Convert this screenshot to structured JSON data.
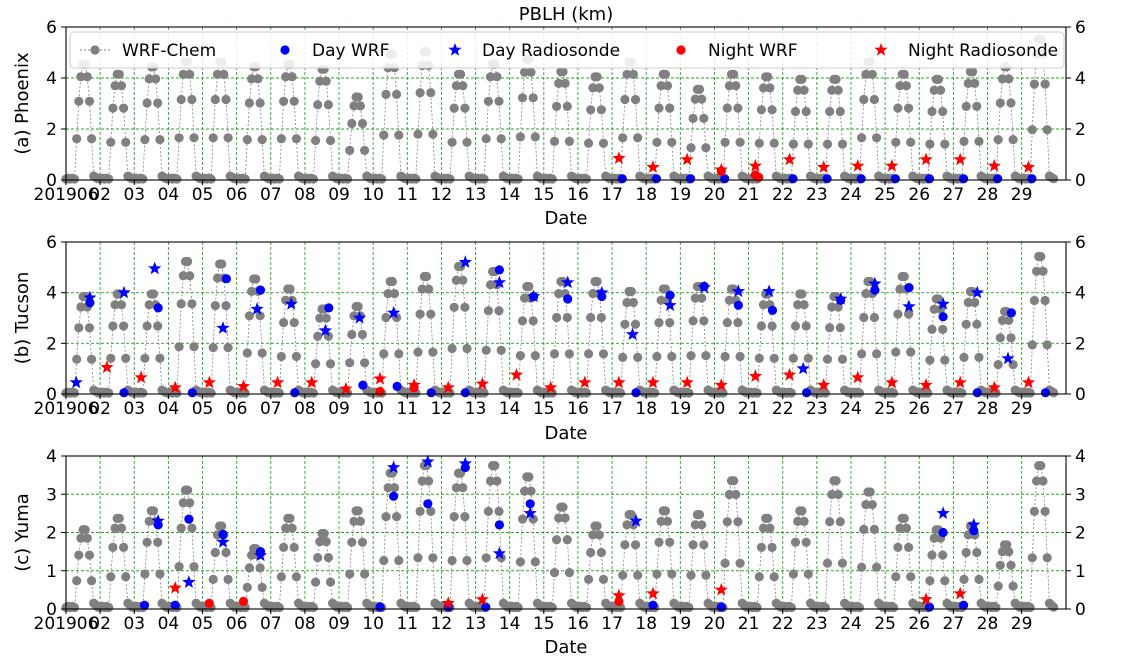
{
  "figure": {
    "title": "PBLH (km)",
    "legend_entries": [
      "WRF-Chem",
      "Day WRF",
      "Day Radiosonde",
      "Night WRF",
      "Night Radiosonde"
    ]
  },
  "colors": {
    "wrf_chem": "#808080",
    "day": "#0000ff",
    "night": "#ff0000",
    "grid": "#2ca02c"
  },
  "chart_data": [
    {
      "type": "scatter",
      "ylabel": "(a) Phoenix",
      "xlabel": "Date",
      "ylim": [
        0,
        6
      ],
      "yticks": [
        0,
        2,
        4,
        6
      ],
      "xticks": [
        "201906",
        "02",
        "03",
        "04",
        "05",
        "06",
        "07",
        "08",
        "09",
        "10",
        "11",
        "12",
        "13",
        "14",
        "15",
        "16",
        "17",
        "18",
        "19",
        "20",
        "21",
        "22",
        "23",
        "24",
        "25",
        "26",
        "27",
        "28",
        "29"
      ],
      "xlim_days": [
        1,
        30.3
      ],
      "grid": "dashed",
      "legend": "top",
      "wrf_daily_peak": [
        4.6,
        4.2,
        4.5,
        4.7,
        4.7,
        4.5,
        4.6,
        4.4,
        3.3,
        5.0,
        5.1,
        4.2,
        4.6,
        4.8,
        4.3,
        4.1,
        4.7,
        4.2,
        3.6,
        4.2,
        4.1,
        4.0,
        4.0,
        4.7,
        4.2,
        4.0,
        4.3,
        4.5,
        5.6
      ],
      "series": [
        {
          "name": "Day WRF",
          "x": [
            17.3,
            18.3,
            19.3,
            20.3,
            22.3,
            23.3,
            24.3,
            25.3,
            26.3,
            27.3,
            28.3,
            29.3
          ],
          "y": [
            0.05,
            0.05,
            0.05,
            0.05,
            0.05,
            0.05,
            0.05,
            0.05,
            0.05,
            0.05,
            0.05,
            0.05
          ]
        },
        {
          "name": "Day Radiosonde",
          "x": [],
          "y": []
        },
        {
          "name": "Night WRF",
          "x": [
            20.2,
            21.2,
            21.3
          ],
          "y": [
            0.35,
            0.2,
            0.1
          ]
        },
        {
          "name": "Night Radiosonde",
          "x": [
            17.2,
            18.2,
            19.2,
            20.2,
            21.2,
            22.2,
            23.2,
            24.2,
            25.2,
            26.2,
            27.2,
            28.2,
            29.2
          ],
          "y": [
            0.85,
            0.5,
            0.8,
            0.4,
            0.55,
            0.8,
            0.5,
            0.55,
            0.55,
            0.8,
            0.8,
            0.55,
            0.5
          ]
        }
      ]
    },
    {
      "type": "scatter",
      "ylabel": "(b) Tucson",
      "xlabel": "Date",
      "ylim": [
        0,
        6
      ],
      "yticks": [
        0,
        2,
        4,
        6
      ],
      "xticks": [
        "201906",
        "02",
        "03",
        "04",
        "05",
        "06",
        "07",
        "08",
        "09",
        "10",
        "11",
        "12",
        "13",
        "14",
        "15",
        "16",
        "17",
        "18",
        "19",
        "20",
        "21",
        "22",
        "23",
        "24",
        "25",
        "26",
        "27",
        "28",
        "29"
      ],
      "xlim_days": [
        1,
        30.3
      ],
      "grid": "dashed",
      "legend": "none",
      "wrf_daily_peak": [
        3.9,
        4.0,
        4.0,
        5.3,
        5.2,
        4.6,
        4.2,
        3.4,
        3.5,
        4.5,
        4.7,
        5.1,
        4.9,
        4.3,
        4.5,
        4.5,
        4.1,
        4.2,
        4.3,
        4.2,
        4.0,
        4.0,
        3.9,
        4.5,
        4.7,
        3.8,
        4.1,
        3.3,
        5.5
      ],
      "series": [
        {
          "name": "Day WRF",
          "x": [
            1.7,
            2.7,
            3.7,
            4.7,
            5.7,
            6.7,
            7.7,
            8.7,
            9.7,
            10.7,
            11.7,
            12.7,
            13.7,
            14.7,
            15.7,
            16.7,
            17.7,
            18.7,
            19.7,
            20.7,
            21.7,
            22.7,
            23.7,
            24.7,
            25.7,
            26.7,
            27.7,
            28.7,
            29.7
          ],
          "y": [
            3.6,
            0.05,
            3.4,
            0.05,
            4.55,
            4.1,
            0.05,
            3.4,
            0.35,
            0.3,
            0.05,
            0.05,
            4.9,
            3.85,
            3.75,
            3.85,
            0.05,
            3.9,
            4.25,
            3.5,
            3.3,
            0.05,
            3.7,
            4.1,
            4.2,
            3.05,
            0.05,
            3.2,
            0.05
          ]
        },
        {
          "name": "Day Radiosonde",
          "x": [
            1.3,
            1.7,
            2.7,
            3.6,
            5.6,
            6.6,
            7.6,
            8.6,
            9.6,
            10.6,
            12.7,
            13.7,
            14.7,
            15.7,
            16.7,
            17.6,
            18.7,
            19.7,
            20.7,
            21.6,
            22.6,
            23.7,
            24.7,
            25.7,
            26.7,
            27.7,
            28.6
          ],
          "y": [
            0.45,
            3.8,
            4.0,
            4.95,
            2.6,
            3.35,
            3.55,
            2.5,
            3.0,
            3.2,
            5.2,
            4.4,
            3.85,
            4.4,
            4.0,
            2.35,
            3.5,
            4.2,
            4.05,
            4.05,
            1.0,
            3.75,
            4.35,
            3.45,
            3.55,
            4.0,
            1.4
          ]
        },
        {
          "name": "Night WRF",
          "x": [
            10.2,
            11.2
          ],
          "y": [
            0.1,
            0.25
          ]
        },
        {
          "name": "Night Radiosonde",
          "x": [
            2.2,
            3.2,
            4.2,
            5.2,
            6.2,
            7.2,
            8.2,
            9.2,
            10.2,
            11.2,
            12.2,
            13.2,
            14.2,
            15.2,
            16.2,
            17.2,
            18.2,
            19.2,
            20.2,
            21.2,
            22.2,
            23.2,
            24.2,
            25.2,
            26.2,
            27.2,
            28.2,
            29.2
          ],
          "y": [
            1.05,
            0.65,
            0.25,
            0.45,
            0.3,
            0.45,
            0.45,
            0.2,
            0.6,
            0.35,
            0.25,
            0.4,
            0.75,
            0.25,
            0.45,
            0.45,
            0.45,
            0.45,
            0.35,
            0.7,
            0.75,
            0.35,
            0.65,
            0.45,
            0.35,
            0.45,
            0.25,
            0.45
          ]
        }
      ]
    },
    {
      "type": "scatter",
      "ylabel": "(c) Yuma",
      "xlabel": "Date",
      "ylim": [
        0,
        4
      ],
      "yticks": [
        0,
        1,
        2,
        3,
        4
      ],
      "xticks": [
        "201906",
        "02",
        "03",
        "04",
        "05",
        "06",
        "07",
        "08",
        "09",
        "10",
        "11",
        "12",
        "13",
        "14",
        "15",
        "16",
        "17",
        "18",
        "19",
        "20",
        "21",
        "22",
        "23",
        "24",
        "25",
        "26",
        "27",
        "28",
        "29"
      ],
      "xlim_days": [
        1,
        30.3
      ],
      "grid": "dashed",
      "legend": "none",
      "wrf_daily_peak": [
        2.1,
        2.4,
        2.6,
        3.15,
        2.2,
        1.6,
        2.4,
        2.0,
        2.6,
        3.6,
        3.8,
        3.6,
        3.8,
        3.5,
        2.7,
        2.2,
        2.5,
        2.6,
        2.5,
        3.4,
        2.4,
        2.6,
        3.4,
        3.1,
        2.4,
        2.1,
        2.2,
        1.7,
        3.8
      ],
      "series": [
        {
          "name": "Day WRF",
          "x": [
            3.3,
            3.7,
            4.2,
            4.6,
            5.6,
            6.7,
            10.2,
            10.6,
            11.6,
            12.2,
            12.7,
            13.3,
            13.7,
            14.6,
            18.2,
            20.2,
            26.3,
            26.7,
            27.3,
            27.6
          ],
          "y": [
            0.1,
            2.2,
            0.1,
            2.35,
            1.95,
            1.5,
            0.05,
            2.95,
            2.75,
            0.05,
            3.7,
            0.05,
            2.2,
            2.75,
            0.1,
            0.05,
            0.05,
            2.0,
            0.1,
            2.05
          ]
        },
        {
          "name": "Day Radiosonde",
          "x": [
            3.7,
            4.6,
            5.6,
            6.7,
            10.6,
            11.6,
            12.7,
            13.7,
            14.6,
            17.7,
            26.7,
            27.6
          ],
          "y": [
            2.3,
            0.7,
            1.75,
            1.4,
            3.7,
            3.85,
            3.8,
            1.45,
            2.5,
            2.3,
            2.5,
            2.2
          ]
        },
        {
          "name": "Night WRF",
          "x": [
            5.2,
            6.2,
            17.2
          ],
          "y": [
            0.15,
            0.2,
            0.2
          ]
        },
        {
          "name": "Night Radiosonde",
          "x": [
            4.2,
            12.2,
            13.2,
            17.2,
            18.2,
            20.2,
            26.2,
            27.2
          ],
          "y": [
            0.55,
            0.15,
            0.25,
            0.35,
            0.4,
            0.5,
            0.25,
            0.4
          ]
        }
      ]
    }
  ]
}
